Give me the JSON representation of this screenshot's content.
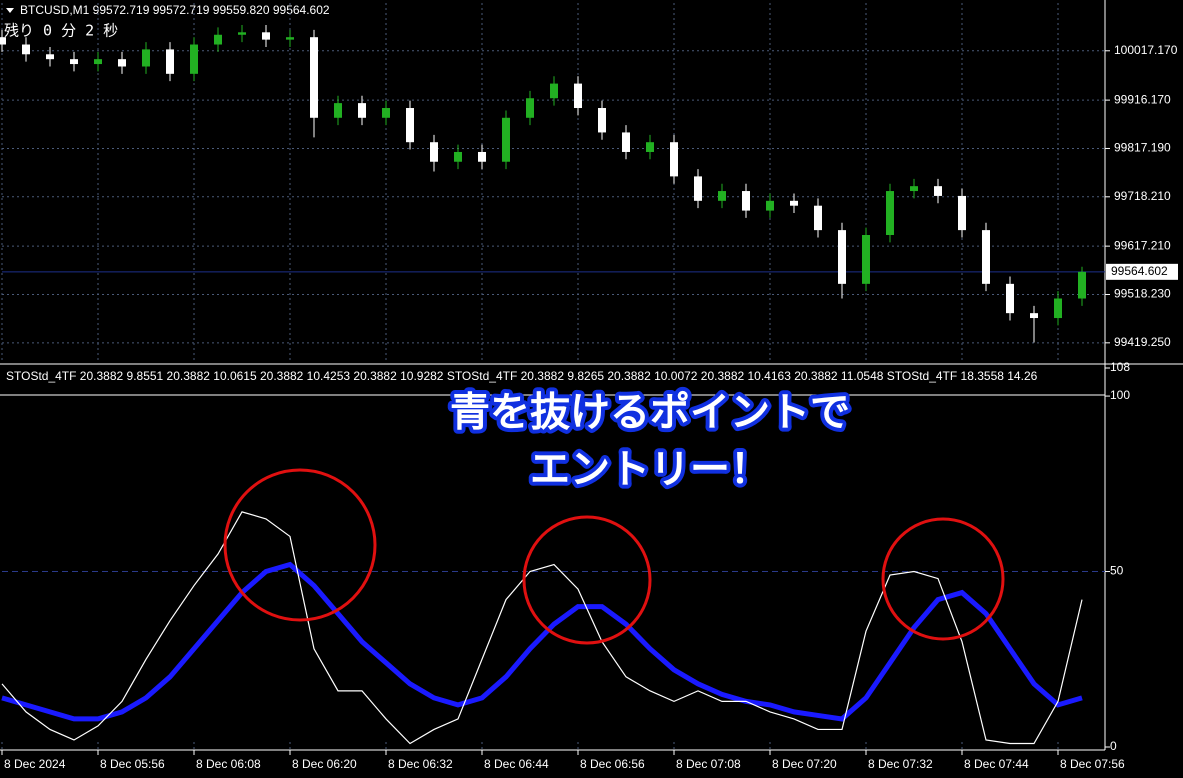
{
  "chart_data": [
    {
      "type": "candlestick",
      "title": "BTCUSD,M1  99572.719 99572.719 99559.820 99564.602",
      "countdown": "残り 0 分 2 秒",
      "x": [
        0,
        3,
        6,
        9,
        12,
        15,
        18,
        21,
        24,
        27,
        30,
        33,
        36,
        39,
        42,
        45,
        48,
        51,
        54,
        57,
        60,
        63,
        66,
        69,
        72,
        75,
        78,
        81,
        84,
        87,
        90,
        93,
        96,
        99,
        102,
        105,
        108,
        111,
        114,
        117,
        120,
        123,
        126,
        129,
        132,
        135
      ],
      "open": [
        100045,
        100030,
        100010,
        100000,
        99990,
        100000,
        99985,
        100020,
        99970,
        100030,
        100050,
        100055,
        100040,
        100045,
        99880,
        99910,
        99880,
        99900,
        99830,
        99790,
        99810,
        99790,
        99880,
        99920,
        99950,
        99900,
        99850,
        99810,
        99830,
        99760,
        99710,
        99730,
        99690,
        99710,
        99700,
        99650,
        99540,
        99640,
        99730,
        99740,
        99720,
        99650,
        99540,
        99480,
        99470,
        99510
      ],
      "high": [
        100060,
        100045,
        100025,
        100015,
        100015,
        100015,
        100035,
        100035,
        100045,
        100065,
        100070,
        100070,
        100060,
        100060,
        99925,
        99925,
        99915,
        99915,
        99845,
        99825,
        99825,
        99895,
        99935,
        99965,
        99965,
        99915,
        99865,
        99845,
        99845,
        99775,
        99745,
        99745,
        99725,
        99725,
        99715,
        99665,
        99655,
        99745,
        99755,
        99755,
        99735,
        99665,
        99555,
        99495,
        99525,
        99575
      ],
      "low": [
        100015,
        99995,
        99985,
        99975,
        99975,
        99970,
        99970,
        99955,
        99955,
        100015,
        100035,
        100025,
        100025,
        99840,
        99865,
        99865,
        99865,
        99815,
        99770,
        99775,
        99775,
        99775,
        99865,
        99905,
        99885,
        99835,
        99795,
        99795,
        99745,
        99695,
        99695,
        99675,
        99675,
        99685,
        99635,
        99510,
        99525,
        99625,
        99715,
        99705,
        99635,
        99525,
        99465,
        99420,
        99455,
        99495
      ],
      "close": [
        100030,
        100010,
        100000,
        99990,
        100000,
        99985,
        100020,
        99970,
        100030,
        100050,
        100055,
        100040,
        100045,
        99880,
        99910,
        99880,
        99900,
        99830,
        99790,
        99810,
        99790,
        99880,
        99920,
        99950,
        99900,
        99850,
        99810,
        99830,
        99760,
        99710,
        99730,
        99690,
        99710,
        99700,
        99650,
        99540,
        99640,
        99730,
        99740,
        99720,
        99650,
        99540,
        99480,
        99470,
        99510,
        99564.602
      ],
      "up_color": "#22b022",
      "down_color": "#ffffff",
      "xlim": [
        0,
        138
      ],
      "ylim": [
        99380,
        100115
      ],
      "yticks": [
        {
          "value": 99419.25,
          "label": "99419.250"
        },
        {
          "value": 99518.23,
          "label": "99518.230"
        },
        {
          "value": 99617.21,
          "label": "99617.210"
        },
        {
          "value": 99718.21,
          "label": "99718.210"
        },
        {
          "value": 99817.19,
          "label": "99817.190"
        },
        {
          "value": 99916.17,
          "label": "99916.170"
        },
        {
          "value": 100017.17,
          "label": "100017.170"
        }
      ],
      "grid": true
    },
    {
      "type": "line",
      "title": "STOStd_4TF 20.3882 9.8551 20.3882 10.0615 20.3882 10.4253 20.3882 10.9282  STOStd_4TF 20.3882 9.8265 20.3882 10.0072 20.3882 10.4163 20.3882 11.0548  STOStd_4TF 18.3558 14.26",
      "annotations": [
        "青を抜けるポイントで",
        "エントリー！"
      ],
      "x": [
        0,
        3,
        6,
        9,
        12,
        15,
        18,
        21,
        24,
        27,
        30,
        33,
        36,
        39,
        42,
        45,
        48,
        51,
        54,
        57,
        60,
        63,
        66,
        69,
        72,
        75,
        78,
        81,
        84,
        87,
        90,
        93,
        96,
        99,
        102,
        105,
        108,
        111,
        114,
        117,
        120,
        123,
        126,
        129,
        132,
        135
      ],
      "series": [
        {
          "color": "#1a1aff",
          "values": [
            14,
            12,
            10,
            8,
            8,
            10,
            14,
            20,
            28,
            36,
            44,
            50,
            52,
            46,
            38,
            30,
            24,
            18,
            14,
            12,
            14,
            20,
            28,
            35,
            40,
            40,
            35,
            28,
            22,
            18,
            15,
            13,
            12,
            10,
            9,
            8,
            14,
            24,
            34,
            42,
            44,
            38,
            28,
            18,
            12,
            14
          ]
        },
        {
          "color": "#ffffff",
          "values": [
            18,
            10,
            5,
            2,
            6,
            13,
            25,
            36,
            46,
            55,
            67,
            65,
            60,
            28,
            16,
            16,
            8,
            1,
            5,
            8,
            25,
            42,
            50,
            52,
            45,
            30,
            20,
            16,
            13,
            16,
            13,
            13,
            10,
            8,
            5,
            5,
            33,
            49,
            50,
            48,
            30,
            2,
            1,
            1,
            13,
            42
          ]
        }
      ],
      "xlim": [
        0,
        138
      ],
      "ylim": [
        0,
        108
      ],
      "xticks": [
        {
          "value": 0,
          "label": "8 Dec 2024"
        },
        {
          "value": 12,
          "label": "8 Dec 05:56"
        },
        {
          "value": 24,
          "label": "8 Dec 06:08"
        },
        {
          "value": 36,
          "label": "8 Dec 06:20"
        },
        {
          "value": 48,
          "label": "8 Dec 06:32"
        },
        {
          "value": 60,
          "label": "8 Dec 06:44"
        },
        {
          "value": 72,
          "label": "8 Dec 06:56"
        },
        {
          "value": 84,
          "label": "8 Dec 07:08"
        },
        {
          "value": 96,
          "label": "8 Dec 07:20"
        },
        {
          "value": 108,
          "label": "8 Dec 07:32"
        },
        {
          "value": 120,
          "label": "8 Dec 07:44"
        },
        {
          "value": 132,
          "label": "8 Dec 07:56"
        }
      ],
      "yticks": [
        0,
        50,
        100,
        108
      ]
    }
  ]
}
